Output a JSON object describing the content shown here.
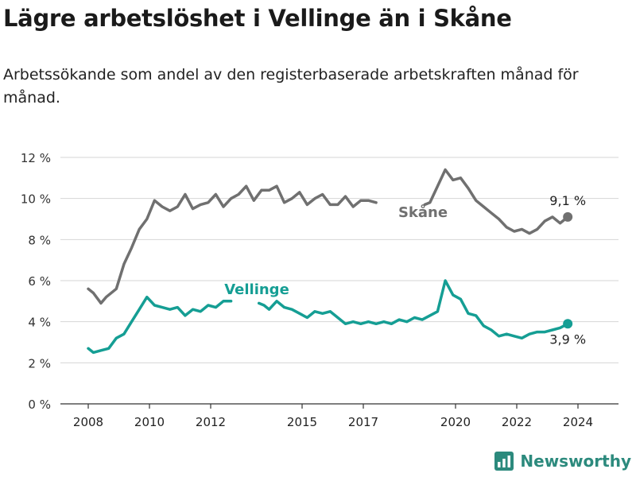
{
  "header": {
    "title": "Lägre arbetslöshet i Vellinge än i Skåne",
    "subtitle": "Arbetssökande som andel av den registerbaserade arbetskraften månad för månad."
  },
  "brand": {
    "name": "Newsworthy",
    "icon": "bar-chart-logo-icon"
  },
  "colors": {
    "skane": "#707070",
    "vellinge": "#159e94",
    "grid": "#d6d6d6",
    "axis": "#333333"
  },
  "chart_data": {
    "type": "line",
    "x_ticks": [
      "2008",
      "2010",
      "2012",
      "2015",
      "2017",
      "2020",
      "2022",
      "2024"
    ],
    "y_ticks": [
      "0 %",
      "2 %",
      "4 %",
      "6 %",
      "8 %",
      "10 %",
      "12 %"
    ],
    "ylim": [
      0,
      12
    ],
    "grid": true,
    "series": [
      {
        "name": "Skåne",
        "end_label": "9,1 %",
        "segments": [
          [
            [
              "2008-01",
              5.6
            ],
            [
              "2008-03",
              5.4
            ],
            [
              "2008-06",
              4.9
            ],
            [
              "2008-08",
              5.2
            ],
            [
              "2008-12",
              5.6
            ],
            [
              "2009-03",
              6.8
            ],
            [
              "2009-06",
              7.6
            ],
            [
              "2009-09",
              8.5
            ],
            [
              "2009-12",
              9.0
            ],
            [
              "2010-03",
              9.9
            ],
            [
              "2010-06",
              9.6
            ],
            [
              "2010-09",
              9.4
            ],
            [
              "2010-12",
              9.6
            ],
            [
              "2011-03",
              10.2
            ],
            [
              "2011-06",
              9.5
            ],
            [
              "2011-09",
              9.7
            ],
            [
              "2011-12",
              9.8
            ],
            [
              "2012-03",
              10.2
            ],
            [
              "2012-06",
              9.6
            ],
            [
              "2012-09",
              10.0
            ],
            [
              "2012-12",
              10.2
            ],
            [
              "2013-03",
              10.6
            ],
            [
              "2013-06",
              9.9
            ],
            [
              "2013-09",
              10.4
            ],
            [
              "2013-12",
              10.4
            ],
            [
              "2014-03",
              10.6
            ],
            [
              "2014-06",
              9.8
            ],
            [
              "2014-09",
              10.0
            ],
            [
              "2014-12",
              10.3
            ],
            [
              "2015-03",
              9.7
            ],
            [
              "2015-06",
              10.0
            ],
            [
              "2015-09",
              10.2
            ],
            [
              "2015-12",
              9.7
            ],
            [
              "2016-03",
              9.7
            ],
            [
              "2016-06",
              10.1
            ],
            [
              "2016-09",
              9.6
            ],
            [
              "2016-12",
              9.9
            ],
            [
              "2017-03",
              9.9
            ],
            [
              "2017-06",
              9.8
            ]
          ],
          [
            [
              "2019-01",
              9.7
            ],
            [
              "2019-03",
              9.8
            ],
            [
              "2019-06",
              10.6
            ],
            [
              "2019-09",
              11.4
            ],
            [
              "2019-12",
              10.9
            ],
            [
              "2020-03",
              11.0
            ],
            [
              "2020-06",
              10.5
            ],
            [
              "2020-09",
              9.9
            ],
            [
              "2020-12",
              9.6
            ],
            [
              "2021-03",
              9.3
            ],
            [
              "2021-06",
              9.0
            ],
            [
              "2021-09",
              8.6
            ],
            [
              "2021-12",
              8.4
            ],
            [
              "2022-03",
              8.5
            ],
            [
              "2022-06",
              8.3
            ],
            [
              "2022-09",
              8.5
            ],
            [
              "2022-12",
              8.9
            ],
            [
              "2023-03",
              9.1
            ],
            [
              "2023-06",
              8.8
            ],
            [
              "2023-09",
              9.1
            ]
          ]
        ]
      },
      {
        "name": "Vellinge",
        "end_label": "3,9 %",
        "segments": [
          [
            [
              "2008-01",
              2.7
            ],
            [
              "2008-03",
              2.5
            ],
            [
              "2008-06",
              2.6
            ],
            [
              "2008-09",
              2.7
            ],
            [
              "2008-12",
              3.2
            ],
            [
              "2009-03",
              3.4
            ],
            [
              "2009-06",
              4.0
            ],
            [
              "2009-09",
              4.6
            ],
            [
              "2009-12",
              5.2
            ],
            [
              "2010-03",
              4.8
            ],
            [
              "2010-06",
              4.7
            ],
            [
              "2010-09",
              4.6
            ],
            [
              "2010-12",
              4.7
            ],
            [
              "2011-03",
              4.3
            ],
            [
              "2011-06",
              4.6
            ],
            [
              "2011-09",
              4.5
            ],
            [
              "2011-12",
              4.8
            ],
            [
              "2012-03",
              4.7
            ],
            [
              "2012-06",
              5.0
            ],
            [
              "2012-09",
              5.0
            ]
          ],
          [
            [
              "2013-08",
              4.9
            ],
            [
              "2013-10",
              4.8
            ],
            [
              "2013-12",
              4.6
            ],
            [
              "2014-03",
              5.0
            ],
            [
              "2014-06",
              4.7
            ],
            [
              "2014-09",
              4.6
            ],
            [
              "2014-12",
              4.4
            ],
            [
              "2015-03",
              4.2
            ],
            [
              "2015-06",
              4.5
            ],
            [
              "2015-09",
              4.4
            ],
            [
              "2015-12",
              4.5
            ],
            [
              "2016-03",
              4.2
            ],
            [
              "2016-06",
              3.9
            ],
            [
              "2016-09",
              4.0
            ],
            [
              "2016-12",
              3.9
            ],
            [
              "2017-03",
              4.0
            ],
            [
              "2017-06",
              3.9
            ],
            [
              "2017-09",
              4.0
            ],
            [
              "2017-12",
              3.9
            ],
            [
              "2018-03",
              4.1
            ],
            [
              "2018-06",
              4.0
            ],
            [
              "2018-09",
              4.2
            ],
            [
              "2018-12",
              4.1
            ],
            [
              "2019-03",
              4.3
            ],
            [
              "2019-06",
              4.5
            ],
            [
              "2019-09",
              6.0
            ],
            [
              "2019-12",
              5.3
            ],
            [
              "2020-03",
              5.1
            ],
            [
              "2020-06",
              4.4
            ],
            [
              "2020-09",
              4.3
            ],
            [
              "2020-12",
              3.8
            ],
            [
              "2021-03",
              3.6
            ],
            [
              "2021-06",
              3.3
            ],
            [
              "2021-09",
              3.4
            ],
            [
              "2021-12",
              3.3
            ],
            [
              "2022-03",
              3.2
            ],
            [
              "2022-06",
              3.4
            ],
            [
              "2022-09",
              3.5
            ],
            [
              "2022-12",
              3.5
            ],
            [
              "2023-03",
              3.6
            ],
            [
              "2023-06",
              3.7
            ],
            [
              "2023-09",
              3.9
            ]
          ]
        ]
      }
    ]
  }
}
